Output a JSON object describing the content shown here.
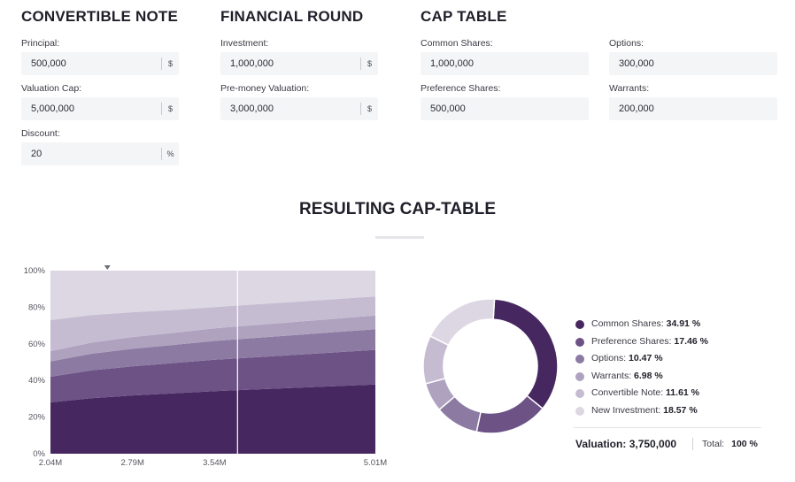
{
  "convertible_note": {
    "title": "CONVERTIBLE NOTE",
    "principal": {
      "label": "Principal:",
      "value": "500,000",
      "unit": "$"
    },
    "valuation_cap": {
      "label": "Valuation Cap:",
      "value": "5,000,000",
      "unit": "$"
    },
    "discount": {
      "label": "Discount:",
      "value": "20",
      "unit": "%"
    }
  },
  "financial_round": {
    "title": "FINANCIAL ROUND",
    "investment": {
      "label": "Investment:",
      "value": "1,000,000",
      "unit": "$"
    },
    "pre_money": {
      "label": "Pre-money Valuation:",
      "value": "3,000,000",
      "unit": "$"
    }
  },
  "cap_table": {
    "title": "CAP TABLE",
    "common": {
      "label": "Common Shares:",
      "value": "1,000,000"
    },
    "options": {
      "label": "Options:",
      "value": "300,000"
    },
    "preference": {
      "label": "Preference Shares:",
      "value": "500,000"
    },
    "warrants": {
      "label": "Warrants:",
      "value": "200,000"
    }
  },
  "result": {
    "title": "RESULTING CAP-TABLE",
    "valuation_label": "Valuation:",
    "valuation_value": "3,750,000",
    "total_label": "Total:",
    "total_value": "100 %"
  },
  "colors": {
    "common": "#46275f",
    "preference": "#6c5285",
    "options": "#8c7aa2",
    "warrants": "#aea2bf",
    "convertible": "#c6bcd2",
    "investment": "#dcd7e3"
  },
  "chart_data": [
    {
      "type": "area",
      "stacked": true,
      "x": [
        2.04,
        2.415,
        2.79,
        3.165,
        3.54,
        4.275,
        5.01
      ],
      "x_tick_labels": [
        "2.04M",
        "2.79M",
        "3.54M",
        "5.01M"
      ],
      "x_tick_values": [
        2.04,
        2.79,
        3.54,
        5.01
      ],
      "y_tick_labels": [
        "0%",
        "20%",
        "40%",
        "60%",
        "80%",
        "100%"
      ],
      "y_tick_values": [
        0,
        20,
        40,
        60,
        80,
        100
      ],
      "ylim": [
        0,
        100
      ],
      "marker_x": 3.75,
      "series": [
        {
          "name": "Common Shares",
          "color_key": "common",
          "values": [
            28,
            30.3,
            31.8,
            33.0,
            34.2,
            36.0,
            37.8
          ]
        },
        {
          "name": "Preference Shares",
          "color_key": "preference",
          "values": [
            14,
            15.2,
            15.9,
            16.5,
            17.1,
            18.0,
            18.9
          ]
        },
        {
          "name": "Options",
          "color_key": "options",
          "values": [
            8.4,
            9.1,
            9.6,
            9.9,
            10.3,
            10.8,
            11.3
          ]
        },
        {
          "name": "Warrants",
          "color_key": "warrants",
          "values": [
            5.6,
            6.1,
            6.4,
            6.6,
            6.9,
            7.2,
            7.5
          ]
        },
        {
          "name": "Convertible Note",
          "color_key": "convertible",
          "values": [
            17.0,
            15.0,
            13.6,
            12.5,
            11.6,
            11.0,
            10.4
          ]
        },
        {
          "name": "New Investment",
          "color_key": "investment",
          "values": [
            27.0,
            24.3,
            22.7,
            21.5,
            19.9,
            17.0,
            14.1
          ]
        }
      ]
    },
    {
      "type": "pie",
      "donut": true,
      "title": "",
      "slices": [
        {
          "label": "Common Shares:",
          "value": 34.91,
          "display": "34.91 %",
          "color_key": "common"
        },
        {
          "label": "Preference Shares:",
          "value": 17.46,
          "display": "17.46 %",
          "color_key": "preference"
        },
        {
          "label": "Options:",
          "value": 10.47,
          "display": "10.47 %",
          "color_key": "options"
        },
        {
          "label": "Warrants:",
          "value": 6.98,
          "display": "6.98 %",
          "color_key": "warrants"
        },
        {
          "label": "Convertible Note:",
          "value": 11.61,
          "display": "11.61 %",
          "color_key": "convertible"
        },
        {
          "label": "New Investment:",
          "value": 18.57,
          "display": "18.57 %",
          "color_key": "investment"
        }
      ]
    }
  ]
}
